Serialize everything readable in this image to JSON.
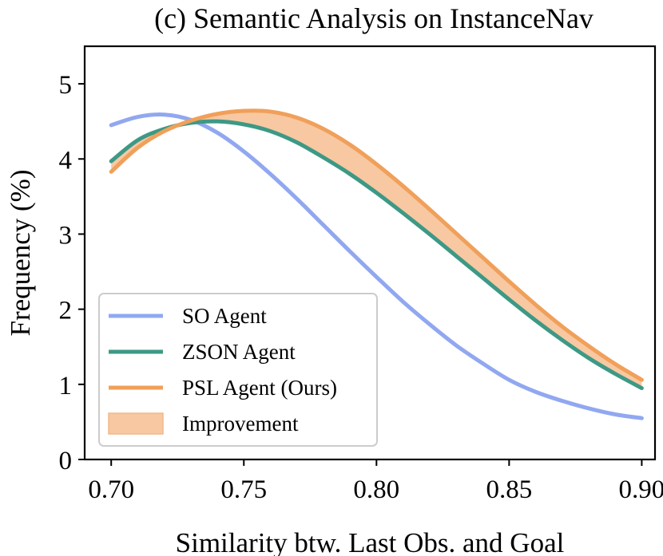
{
  "chart_data": {
    "type": "line",
    "title": "(c) Semantic Analysis on InstanceNav",
    "xlabel": "Similarity btw. Last Obs. and Goal",
    "ylabel": "Frequency (%)",
    "xlim": [
      0.69,
      0.905
    ],
    "ylim": [
      0,
      5.5
    ],
    "xticks": [
      0.7,
      0.75,
      0.8,
      0.85,
      0.9
    ],
    "xtick_labels": [
      "0.70",
      "0.75",
      "0.80",
      "0.85",
      "0.90"
    ],
    "yticks": [
      0,
      1,
      2,
      3,
      4,
      5
    ],
    "ytick_labels": [
      "0",
      "1",
      "2",
      "3",
      "4",
      "5"
    ],
    "grid": false,
    "legend_position": "lower-left",
    "x": [
      0.7,
      0.71,
      0.72,
      0.73,
      0.74,
      0.75,
      0.76,
      0.77,
      0.78,
      0.79,
      0.8,
      0.81,
      0.82,
      0.83,
      0.84,
      0.85,
      0.86,
      0.87,
      0.88,
      0.89,
      0.9
    ],
    "series": [
      {
        "name": "SO Agent",
        "color": "#91a8f0",
        "values": [
          4.45,
          4.56,
          4.59,
          4.52,
          4.35,
          4.1,
          3.8,
          3.47,
          3.12,
          2.77,
          2.43,
          2.1,
          1.8,
          1.52,
          1.28,
          1.06,
          0.9,
          0.78,
          0.68,
          0.6,
          0.55
        ]
      },
      {
        "name": "ZSON Agent",
        "color": "#3d9985",
        "values": [
          3.97,
          4.25,
          4.4,
          4.48,
          4.5,
          4.46,
          4.37,
          4.22,
          4.02,
          3.8,
          3.55,
          3.28,
          3.0,
          2.71,
          2.42,
          2.13,
          1.85,
          1.59,
          1.35,
          1.14,
          0.95
        ]
      },
      {
        "name": "PSL Agent (Ours)",
        "color": "#f0a05a",
        "values": [
          3.83,
          4.15,
          4.37,
          4.51,
          4.6,
          4.64,
          4.63,
          4.55,
          4.4,
          4.19,
          3.93,
          3.64,
          3.33,
          3.01,
          2.69,
          2.37,
          2.06,
          1.77,
          1.51,
          1.27,
          1.06
        ]
      }
    ],
    "fill_between": {
      "name": "Improvement",
      "upper": "PSL Agent (Ours)",
      "lower": "ZSON Agent",
      "color": "#f7c8a2"
    }
  }
}
